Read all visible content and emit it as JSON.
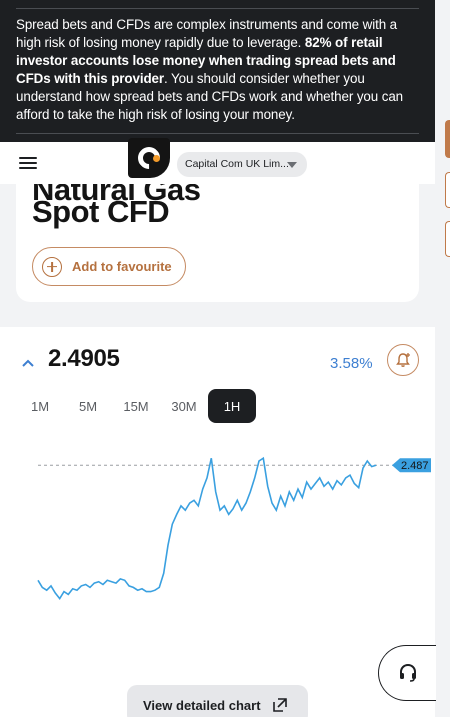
{
  "warning": {
    "text_1": "Spread bets and CFDs are complex instruments and come with a high risk of losing money rapidly due to leverage. ",
    "text_bold": "82% of retail investor accounts lose money when trading spread bets and CFDs with this provider",
    "text_2": ". You should consider whether you understand how spread bets and CFDs work and whether you can afford to take the high risk of losing your money."
  },
  "header": {
    "entity_label": "Capital Com UK Lim..."
  },
  "instrument": {
    "title_partial": "Natural Gas",
    "title": "Spot CFD",
    "favourite_label": "Add to favourite"
  },
  "quote": {
    "price": "2.4905",
    "change": "3.58%"
  },
  "timeframes": [
    "1M",
    "5M",
    "15M",
    "30M",
    "1H"
  ],
  "active_timeframe": "1H",
  "chart_data": {
    "type": "line",
    "current_label": "2.487",
    "current_value": 2.487,
    "ylim": [
      2.386,
      2.5
    ],
    "values": [
      2.405,
      2.4,
      2.398,
      2.401,
      2.396,
      2.392,
      2.397,
      2.395,
      2.399,
      2.398,
      2.401,
      2.402,
      2.4,
      2.403,
      2.404,
      2.402,
      2.405,
      2.404,
      2.403,
      2.406,
      2.405,
      2.401,
      2.4,
      2.398,
      2.399,
      2.397,
      2.397,
      2.398,
      2.4,
      2.41,
      2.43,
      2.445,
      2.452,
      2.458,
      2.455,
      2.46,
      2.462,
      2.458,
      2.47,
      2.478,
      2.492,
      2.468,
      2.455,
      2.458,
      2.452,
      2.456,
      2.462,
      2.455,
      2.46,
      2.468,
      2.478,
      2.49,
      2.492,
      2.472,
      2.46,
      2.455,
      2.465,
      2.458,
      2.468,
      2.462,
      2.47,
      2.464,
      2.475,
      2.47,
      2.474,
      2.478,
      2.472,
      2.475,
      2.47,
      2.476,
      2.473,
      2.478,
      2.48,
      2.474,
      2.471,
      2.485,
      2.49,
      2.486,
      2.487
    ]
  },
  "detail_button_label": "View detailed chart",
  "colors": {
    "accent": "#b5713f",
    "line": "#3aa0e0",
    "up": "#3d7fd1"
  }
}
